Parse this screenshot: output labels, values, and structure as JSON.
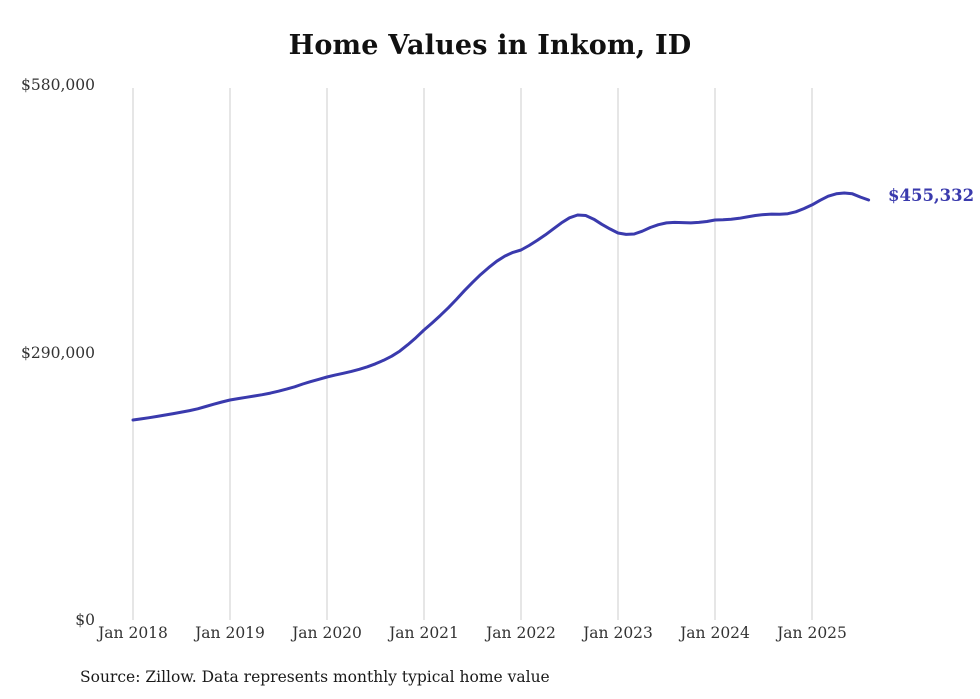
{
  "chart_data": {
    "type": "line",
    "title": "Home Values in Inkom, ID",
    "source": "Source: Zillow. Data represents monthly typical home value",
    "end_label": "$455,332",
    "latest_value": 455332,
    "xlabel": "",
    "ylabel": "",
    "ylim": [
      0,
      580000
    ],
    "grid": "vertical-only",
    "legend_position": "none",
    "x_tick_labels": [
      "Jan 2018",
      "Jan 2019",
      "Jan 2020",
      "Jan 2021",
      "Jan 2022",
      "Jan 2023",
      "Jan 2024",
      "Jan 2025"
    ],
    "y_tick_labels": [
      "$0",
      "$290,000",
      "$580,000"
    ],
    "y_tick_values": [
      0,
      290000,
      580000
    ],
    "series_name": "Typical home value",
    "start_month": "Jan 2018",
    "frequency": "monthly",
    "values": [
      216800,
      218000,
      219300,
      220700,
      222200,
      223800,
      225400,
      227000,
      229000,
      231500,
      234000,
      236300,
      238500,
      240000,
      241400,
      242800,
      244300,
      246000,
      248000,
      250300,
      252800,
      255800,
      258500,
      261000,
      263400,
      265500,
      267500,
      269500,
      271800,
      274500,
      277800,
      281500,
      286000,
      291500,
      298500,
      306000,
      314400,
      322000,
      330000,
      338500,
      347500,
      357000,
      366000,
      374500,
      382000,
      389000,
      394500,
      398500,
      401100,
      406000,
      411500,
      417500,
      424000,
      430500,
      436000,
      439100,
      438500,
      434500,
      429000,
      424000,
      419600,
      418000,
      418500,
      421500,
      425500,
      428500,
      430500,
      431000,
      430800,
      430500,
      431000,
      432000,
      433600,
      434000,
      434500,
      435500,
      437000,
      438500,
      439500,
      440000,
      439800,
      440500,
      442500,
      446000,
      450000,
      455000,
      459500,
      462000,
      462900,
      462000,
      458500,
      455332
    ],
    "line_color": "#3a3aad",
    "grid_color": "#cccccc",
    "tick_color": "#333333"
  }
}
